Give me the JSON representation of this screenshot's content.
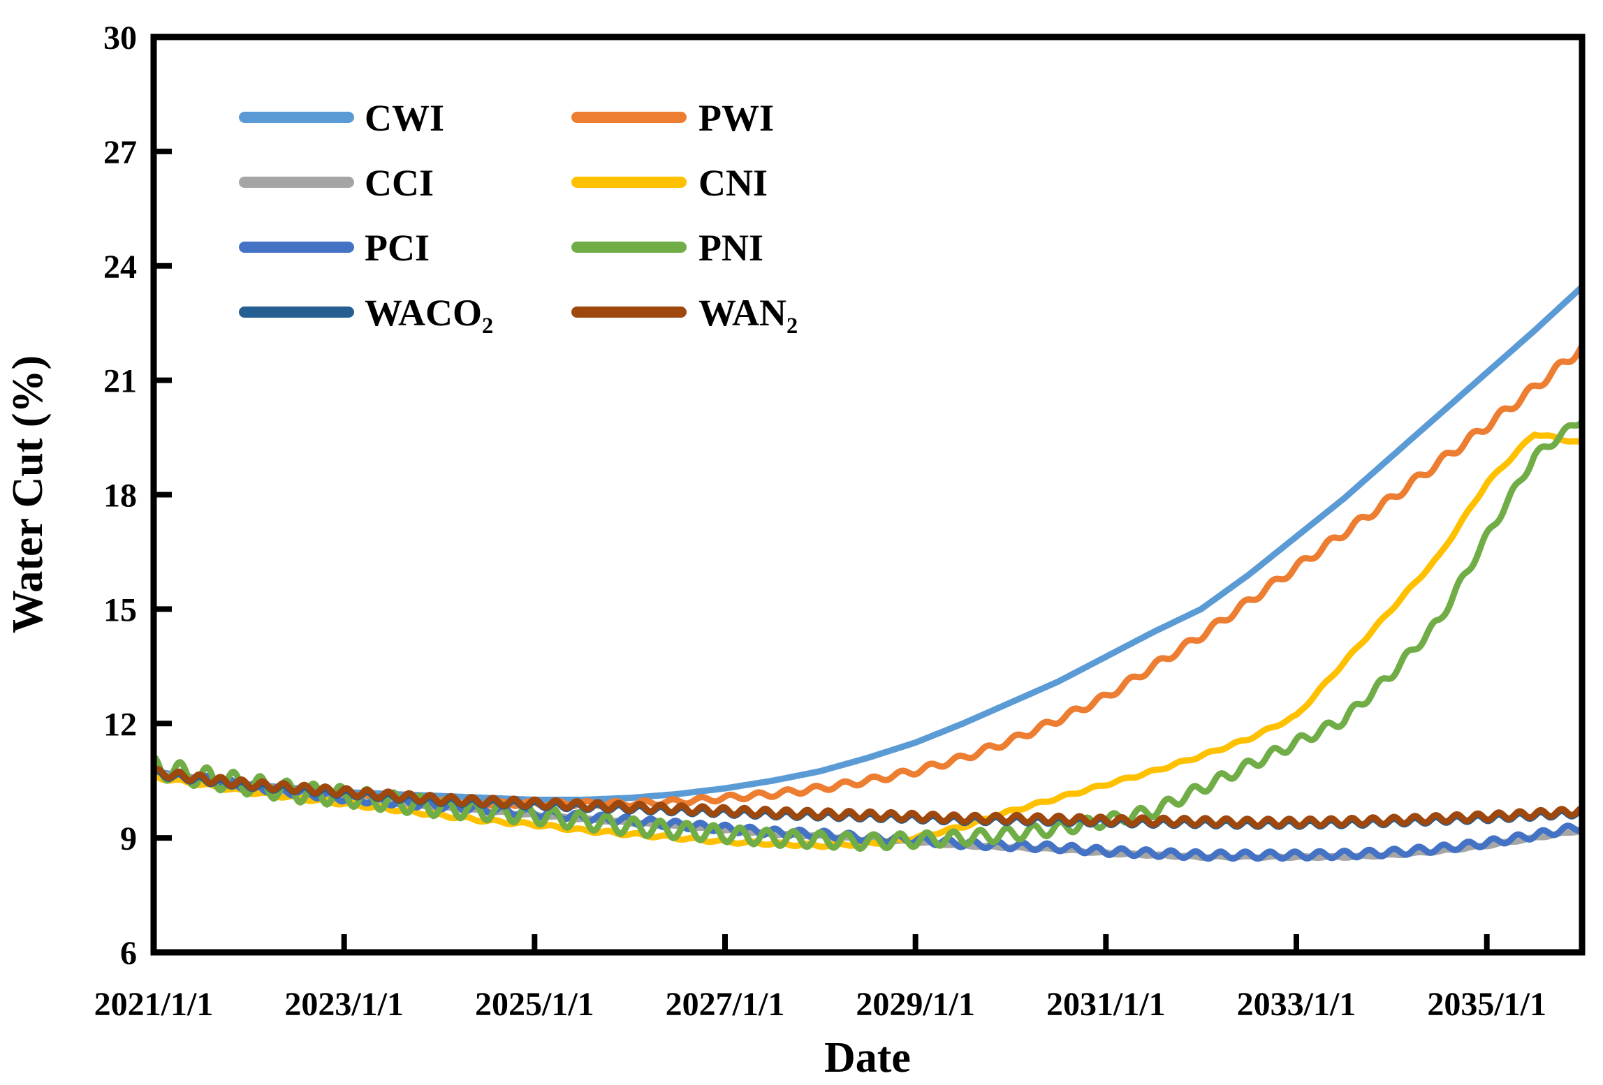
{
  "figure": {
    "background": "#ffffff"
  },
  "axes": {
    "x_title": "Date",
    "y_title": "Water Cut (%)",
    "x_tick_labels": [
      "2021/1/1",
      "2023/1/1",
      "2025/1/1",
      "2027/1/1",
      "2029/1/1",
      "2031/1/1",
      "2033/1/1",
      "2035/1/1"
    ],
    "y_tick_labels": [
      "30",
      "27",
      "24",
      "21",
      "18",
      "15",
      "12",
      "9",
      "6"
    ]
  },
  "legend": {
    "columns": [
      [
        "CWI",
        "CCI",
        "PCI",
        "WACO₂"
      ],
      [
        "PWI",
        "CNI",
        "PNI",
        "WAN₂"
      ]
    ]
  },
  "chart_data": {
    "type": "line",
    "title": "",
    "xlabel": "Date",
    "ylabel": "Water Cut (%)",
    "x_axis_kind": "date",
    "x_range_years": [
      2021,
      2036
    ],
    "x_tick_years": [
      2021,
      2023,
      2025,
      2027,
      2029,
      2031,
      2033,
      2035
    ],
    "x_tick_labels": [
      "2021/1/1",
      "2023/1/1",
      "2025/1/1",
      "2027/1/1",
      "2029/1/1",
      "2031/1/1",
      "2033/1/1",
      "2035/1/1"
    ],
    "ylim": [
      6,
      30
    ],
    "y_ticks": [
      6,
      9,
      12,
      15,
      18,
      21,
      24,
      27,
      30
    ],
    "grid": false,
    "legend_position": "top-left, two columns",
    "x_start_year": 2021,
    "x_step_years": 0.5,
    "series": [
      {
        "name": "CWI",
        "color": "#5B9BD5",
        "values": [
          10.75,
          10.55,
          10.4,
          10.3,
          10.2,
          10.15,
          10.1,
          10.05,
          10.0,
          10.0,
          10.05,
          10.15,
          10.3,
          10.5,
          10.75,
          11.1,
          11.5,
          12.0,
          12.55,
          13.1,
          13.75,
          14.4,
          15.0,
          15.9,
          16.9,
          17.9,
          19.0,
          20.1,
          21.2,
          22.3,
          23.45
        ],
        "wiggle": {
          "amp_start": 0,
          "amp_end": 0,
          "period_years": 0.25,
          "phase": 0
        }
      },
      {
        "name": "PWI",
        "color": "#ED7D31",
        "values": [
          10.7,
          10.5,
          10.35,
          10.2,
          10.1,
          10.0,
          9.95,
          9.9,
          9.9,
          9.9,
          9.9,
          9.95,
          10.05,
          10.15,
          10.3,
          10.5,
          10.75,
          11.1,
          11.55,
          12.1,
          12.7,
          13.5,
          14.3,
          15.2,
          16.1,
          17.0,
          17.9,
          18.85,
          19.8,
          20.8,
          21.85
        ],
        "wiggle": {
          "amp_start": 0.04,
          "amp_end": 0.12,
          "period_years": 0.3,
          "phase": 0.5
        }
      },
      {
        "name": "CCI",
        "color": "#A5A5A5",
        "values": [
          10.7,
          10.5,
          10.3,
          10.15,
          10.0,
          9.9,
          9.8,
          9.7,
          9.6,
          9.5,
          9.4,
          9.3,
          9.2,
          9.1,
          9.05,
          8.95,
          8.9,
          8.8,
          8.75,
          8.7,
          8.6,
          8.55,
          8.5,
          8.5,
          8.5,
          8.5,
          8.55,
          8.65,
          8.8,
          9.0,
          9.2
        ],
        "wiggle": {
          "amp_start": 0.02,
          "amp_end": 0.02,
          "period_years": 0.3,
          "phase": 0
        }
      },
      {
        "name": "CNI",
        "color": "#FFC000",
        "values": [
          10.6,
          10.4,
          10.2,
          10.05,
          9.9,
          9.75,
          9.6,
          9.45,
          9.35,
          9.2,
          9.1,
          9.0,
          8.9,
          8.85,
          8.8,
          8.85,
          9.0,
          9.3,
          9.7,
          10.05,
          10.4,
          10.75,
          11.15,
          11.6,
          12.2,
          13.6,
          15.0,
          16.4,
          18.3,
          19.6,
          19.35
        ],
        "wiggle": {
          "amp_start": 0.04,
          "amp_end": 0.03,
          "period_years": 0.3,
          "phase": 2.0
        }
      },
      {
        "name": "PCI",
        "color": "#4472C4",
        "values": [
          10.75,
          10.55,
          10.35,
          10.2,
          10.05,
          9.95,
          9.85,
          9.75,
          9.65,
          9.55,
          9.45,
          9.35,
          9.25,
          9.15,
          9.1,
          9.0,
          8.95,
          8.85,
          8.8,
          8.75,
          8.65,
          8.6,
          8.55,
          8.55,
          8.55,
          8.57,
          8.62,
          8.72,
          8.87,
          9.07,
          9.3
        ],
        "wiggle": {
          "amp_start": 0.1,
          "amp_end": 0.09,
          "period_years": 0.26,
          "phase": 1.0
        }
      },
      {
        "name": "PNI",
        "color": "#70AD47",
        "values": [
          10.85,
          10.6,
          10.4,
          10.2,
          10.1,
          9.95,
          9.8,
          9.7,
          9.6,
          9.45,
          9.3,
          9.2,
          9.1,
          9.0,
          8.95,
          8.9,
          8.95,
          9.0,
          9.1,
          9.25,
          9.45,
          9.7,
          10.3,
          10.9,
          11.5,
          12.1,
          13.3,
          14.7,
          16.9,
          19.0,
          20.0
        ],
        "wiggle": {
          "amp_start": 0.28,
          "amp_end": 0.1,
          "period_years": 0.28,
          "phase": 1.6
        }
      },
      {
        "name": "WACO₂",
        "color": "#255E91",
        "note": "curve lies almost exactly beneath the WAN₂ curve and is hidden by it",
        "values": [
          10.68,
          10.52,
          10.37,
          10.27,
          10.17,
          10.07,
          9.97,
          9.92,
          9.87,
          9.82,
          9.77,
          9.72,
          9.67,
          9.62,
          9.59,
          9.56,
          9.52,
          9.47,
          9.47,
          9.45,
          9.42,
          9.4,
          9.39,
          9.37,
          9.37,
          9.39,
          9.42,
          9.47,
          9.52,
          9.59,
          9.66
        ],
        "wiggle": {
          "amp_start": 0.08,
          "amp_end": 0.08,
          "period_years": 0.22,
          "phase": 0.3
        }
      },
      {
        "name": "WAN₂",
        "color": "#9E480E",
        "values": [
          10.72,
          10.56,
          10.41,
          10.31,
          10.21,
          10.11,
          10.01,
          9.96,
          9.91,
          9.86,
          9.81,
          9.76,
          9.71,
          9.66,
          9.63,
          9.6,
          9.56,
          9.51,
          9.51,
          9.49,
          9.46,
          9.44,
          9.43,
          9.41,
          9.41,
          9.43,
          9.46,
          9.51,
          9.56,
          9.63,
          9.7
        ],
        "wiggle": {
          "amp_start": 0.1,
          "amp_end": 0.09,
          "period_years": 0.22,
          "phase": 0.3
        }
      }
    ]
  }
}
